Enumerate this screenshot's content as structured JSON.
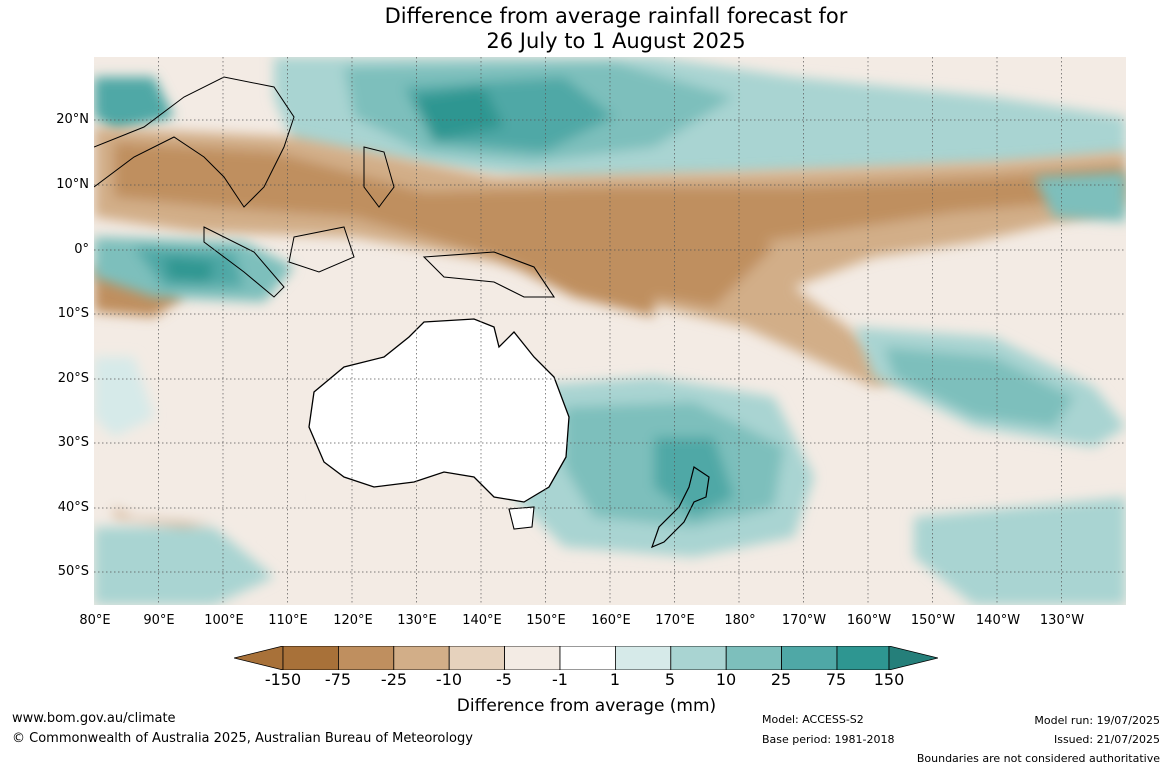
{
  "title": {
    "line1": "Difference from average rainfall forecast for",
    "line2": "26 July to 1 August 2025"
  },
  "axes": {
    "lat_labels": [
      "20°N",
      "10°N",
      "0°",
      "10°S",
      "20°S",
      "30°S",
      "40°S",
      "50°S"
    ],
    "lon_labels": [
      "80°E",
      "90°E",
      "100°E",
      "110°E",
      "120°E",
      "130°E",
      "140°E",
      "150°E",
      "160°E",
      "170°E",
      "180°",
      "170°W",
      "160°W",
      "150°W",
      "140°W",
      "130°W"
    ]
  },
  "legend": {
    "ticks": [
      "-150",
      "-75",
      "-25",
      "-10",
      "-5",
      "-1",
      "1",
      "5",
      "10",
      "25",
      "75",
      "150"
    ],
    "colors": [
      "#a87139",
      "#bf8f5f",
      "#d2ae88",
      "#e6d2bd",
      "#f3ebe4",
      "#ffffff",
      "#d6eae9",
      "#a9d4d2",
      "#7dbfbc",
      "#4fa8a6",
      "#2e9691",
      "#257f7a"
    ],
    "title": "Difference from average (mm)"
  },
  "footer": {
    "url": "www.bom.gov.au/climate",
    "copyright": "© Commonwealth of Australia 2025, Australian Bureau of Meteorology",
    "model": "Model: ACCESS-S2",
    "base_period": "Base period: 1981-2018",
    "model_run": "Model run: 19/07/2025",
    "issued": "Issued: 21/07/2025",
    "disclaimer": "Boundaries are not considered authoritative"
  }
}
